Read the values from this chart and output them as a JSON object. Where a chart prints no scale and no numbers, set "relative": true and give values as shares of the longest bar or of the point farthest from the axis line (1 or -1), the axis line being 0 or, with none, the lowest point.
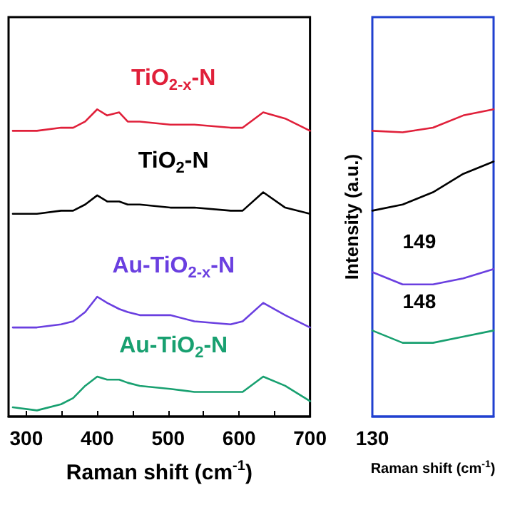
{
  "chart_data": [
    {
      "type": "line",
      "relative": true,
      "xlabel": "Raman shift (cm$^{-1}$)",
      "xlim": [
        275,
        700
      ],
      "xticks": [
        300,
        {
          "value": 350,
          "label": null
        },
        400,
        {
          "value": 450,
          "label": null
        },
        500,
        {
          "value": 550,
          "label": null
        },
        600,
        {
          "value": 650,
          "label": null
        },
        700
      ],
      "x": [
        281,
        315,
        349,
        366,
        383,
        400,
        414,
        431,
        443,
        460,
        503,
        537,
        588,
        605,
        634,
        665,
        700
      ],
      "series": [
        {
          "name": "TiO$_{2-x}$-N",
          "color": "#e0203a",
          "values": [
            0.93,
            0.93,
            0.94,
            0.94,
            0.96,
            1.0,
            0.98,
            0.99,
            0.96,
            0.96,
            0.95,
            0.95,
            0.94,
            0.94,
            0.99,
            0.97,
            0.93
          ]
        },
        {
          "name": "TiO$_{2}$-N",
          "color": "#000000",
          "values": [
            0.66,
            0.66,
            0.67,
            0.67,
            0.69,
            0.72,
            0.7,
            0.7,
            0.69,
            0.69,
            0.68,
            0.68,
            0.67,
            0.67,
            0.73,
            0.68,
            0.66
          ]
        },
        {
          "name": "Au-TiO$_{2-x}$-N",
          "color": "#6a3fe0",
          "values": [
            0.29,
            0.29,
            0.3,
            0.31,
            0.34,
            0.39,
            0.37,
            0.35,
            0.34,
            0.33,
            0.33,
            0.31,
            0.3,
            0.31,
            0.37,
            0.33,
            0.29
          ]
        },
        {
          "name": "Au-TiO$_{2}$-N",
          "color": "#18a070",
          "values": [
            0.03,
            0.02,
            0.04,
            0.06,
            0.1,
            0.13,
            0.12,
            0.12,
            0.11,
            0.1,
            0.09,
            0.08,
            0.08,
            0.08,
            0.13,
            0.1,
            0.05
          ]
        }
      ]
    },
    {
      "type": "line",
      "relative": true,
      "xlabel": "Raman shift (cm$^{-1}$)",
      "ylabel": "Intensity (a.u.)",
      "categories": [
        null,
        null,
        null,
        null,
        null
      ],
      "annotations": [
        "130",
        "149",
        "148"
      ],
      "series": [
        {
          "color": "#e0203a",
          "values": [
            0.93,
            0.925,
            0.94,
            0.98,
            1.0
          ]
        },
        {
          "color": "#000000",
          "values": [
            0.67,
            0.69,
            0.73,
            0.79,
            0.83
          ]
        },
        {
          "color": "#6a3fe0",
          "values": [
            0.47,
            0.43,
            0.43,
            0.45,
            0.48
          ]
        },
        {
          "color": "#18a070",
          "values": [
            0.28,
            0.24,
            0.24,
            0.26,
            0.28
          ]
        }
      ]
    }
  ]
}
